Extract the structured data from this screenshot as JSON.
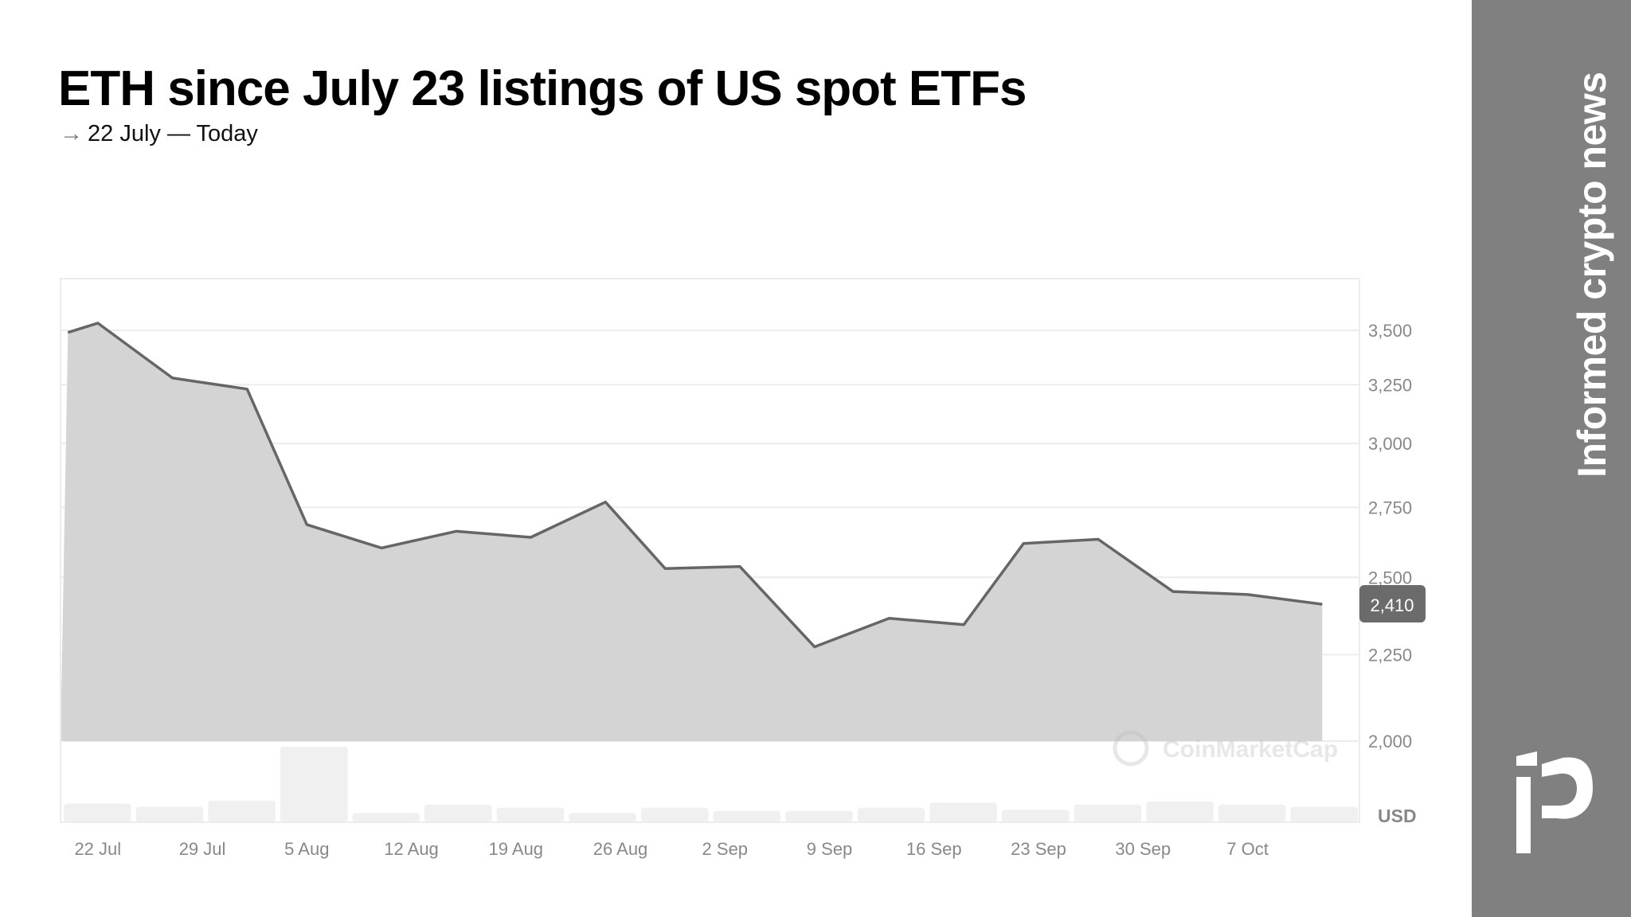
{
  "title": "ETH since July 23 listings of US spot ETFs",
  "subtitle": {
    "arrow_icon": "right-arrow-icon",
    "text": "22 July — Today"
  },
  "sidebar": {
    "tagline": "Informed crypto news",
    "logo": "iP",
    "color": "#808080"
  },
  "chart_data": {
    "type": "area",
    "title": "ETH since July 23 listings of US spot ETFs",
    "subtitle": "22 July — Today",
    "xlabel": "",
    "ylabel": "",
    "unit_label": "USD",
    "y_scale": "log",
    "ylim": [
      2000,
      3700
    ],
    "grid": true,
    "yticks": [
      3500,
      3250,
      3000,
      2750,
      2500,
      2250,
      2000
    ],
    "ytick_labels": [
      "3,500",
      "3,250",
      "3,000",
      "2,750",
      "2,500",
      "2,250",
      "2,000"
    ],
    "xticks": [
      "2024-07-22",
      "2024-07-29",
      "2024-08-05",
      "2024-08-12",
      "2024-08-19",
      "2024-08-26",
      "2024-09-02",
      "2024-09-09",
      "2024-09-16",
      "2024-09-23",
      "2024-09-30",
      "2024-10-07"
    ],
    "xtick_labels": [
      "22 Jul",
      "29 Jul",
      "5 Aug",
      "12 Aug",
      "19 Aug",
      "26 Aug",
      "2 Sep",
      "9 Sep",
      "16 Sep",
      "23 Sep",
      "30 Sep",
      "7 Oct"
    ],
    "series": [
      {
        "x": [
          "2024-07-20",
          "2024-07-22",
          "2024-07-27",
          "2024-08-01",
          "2024-08-05",
          "2024-08-10",
          "2024-08-15",
          "2024-08-20",
          "2024-08-25",
          "2024-08-29",
          "2024-09-03",
          "2024-09-08",
          "2024-09-13",
          "2024-09-18",
          "2024-09-22",
          "2024-09-27",
          "2024-10-02",
          "2024-10-07",
          "2024-10-12"
        ],
        "values": [
          3490,
          3535,
          3280,
          3231,
          2686,
          2602,
          2662,
          2640,
          2770,
          2530,
          2537,
          2274,
          2364,
          2344,
          2618,
          2633,
          2452,
          2442,
          2410
        ]
      }
    ],
    "current_value_label": "2,410",
    "volume_relative": [
      18,
      15,
      21,
      73,
      9,
      17,
      14,
      9,
      14,
      11,
      11,
      14,
      19,
      12,
      17,
      20,
      17,
      15
    ],
    "watermark": "CoinMarketCap",
    "colors": {
      "line": "#666666",
      "fill": "#d4d4d4",
      "volume": "#f0f0f0",
      "badge": "#6b6b6b",
      "grid": "#ececec",
      "ticks": "#888888"
    }
  }
}
